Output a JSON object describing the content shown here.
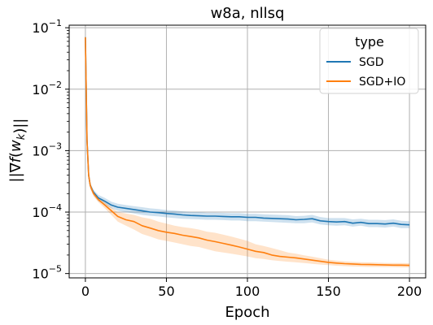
{
  "chart_data": {
    "type": "line",
    "title": "w8a, nllsq",
    "xlabel": "Epoch",
    "ylabel": "||∇f(w_k)||",
    "xlim": [
      -10,
      210
    ],
    "ylim": [
      8.5e-06,
      0.11
    ],
    "yscale": "log",
    "grid": true,
    "xticks": [
      0,
      50,
      100,
      150,
      200
    ],
    "xtick_labels": [
      "0",
      "50",
      "100",
      "150",
      "200"
    ],
    "yticks": [
      1e-05,
      0.0001,
      0.001,
      0.01,
      0.1
    ],
    "ytick_labels": [
      {
        "base": "10",
        "exp": "−5"
      },
      {
        "base": "10",
        "exp": "−4"
      },
      {
        "base": "10",
        "exp": "−3"
      },
      {
        "base": "10",
        "exp": "−2"
      },
      {
        "base": "10",
        "exp": "−1"
      }
    ],
    "legend": {
      "title": "type",
      "position": "top-right"
    },
    "series": [
      {
        "name": "SGD",
        "color": "#1f77b4",
        "x": [
          0,
          1,
          2,
          3,
          5,
          8,
          12,
          16,
          20,
          25,
          30,
          35,
          40,
          45,
          50,
          55,
          60,
          65,
          70,
          75,
          80,
          85,
          90,
          95,
          100,
          105,
          110,
          115,
          120,
          125,
          130,
          135,
          140,
          145,
          150,
          155,
          160,
          165,
          170,
          175,
          180,
          185,
          190,
          195,
          200
        ],
        "values": [
          0.07,
          0.0015,
          0.0004,
          0.00027,
          0.00021,
          0.00017,
          0.00015,
          0.00013,
          0.00012,
          0.000115,
          0.00011,
          0.000105,
          0.0001,
          9.8e-05,
          9.5e-05,
          9.3e-05,
          9e-05,
          8.8e-05,
          8.7e-05,
          8.6e-05,
          8.6e-05,
          8.5e-05,
          8.4e-05,
          8.4e-05,
          8.2e-05,
          8.2e-05,
          8e-05,
          7.9e-05,
          7.8e-05,
          7.7e-05,
          7.5e-05,
          7.6e-05,
          7.8e-05,
          7.2e-05,
          7e-05,
          6.9e-05,
          7e-05,
          6.6e-05,
          6.8e-05,
          6.5e-05,
          6.5e-05,
          6.4e-05,
          6.6e-05,
          6.3e-05,
          6.2e-05
        ],
        "lower": [
          0.065,
          0.0013,
          0.00035,
          0.00024,
          0.00019,
          0.00015,
          0.00013,
          0.000115,
          0.000105,
          0.0001,
          9.5e-05,
          9e-05,
          8.7e-05,
          8.5e-05,
          8.2e-05,
          8e-05,
          7.8e-05,
          7.7e-05,
          7.6e-05,
          7.5e-05,
          7.5e-05,
          7.4e-05,
          7.3e-05,
          7.3e-05,
          7.1e-05,
          7.1e-05,
          7e-05,
          6.9e-05,
          6.8e-05,
          6.7e-05,
          6.6e-05,
          6.6e-05,
          6.8e-05,
          6.3e-05,
          6.1e-05,
          6e-05,
          6.1e-05,
          5.8e-05,
          6e-05,
          5.7e-05,
          5.7e-05,
          5.6e-05,
          5.8e-05,
          5.5e-05,
          5.5e-05
        ],
        "upper": [
          0.075,
          0.0017,
          0.00045,
          0.0003,
          0.00023,
          0.00019,
          0.00017,
          0.000148,
          0.000137,
          0.00013,
          0.000125,
          0.00012,
          0.000115,
          0.000112,
          0.000108,
          0.000106,
          0.000103,
          0.0001,
          0.0001,
          9.8e-05,
          9.8e-05,
          9.7e-05,
          9.6e-05,
          9.6e-05,
          9.4e-05,
          9.4e-05,
          9.2e-05,
          9.1e-05,
          9e-05,
          8.9e-05,
          8.6e-05,
          8.7e-05,
          9e-05,
          8.3e-05,
          8e-05,
          8e-05,
          8e-05,
          7.6e-05,
          7.8e-05,
          7.5e-05,
          7.5e-05,
          7.4e-05,
          7.6e-05,
          7.2e-05,
          7.1e-05
        ]
      },
      {
        "name": "SGD+IO",
        "color": "#ff7f0e",
        "x": [
          0,
          1,
          2,
          3,
          5,
          8,
          12,
          16,
          20,
          25,
          30,
          35,
          40,
          45,
          50,
          55,
          60,
          65,
          70,
          75,
          80,
          85,
          90,
          95,
          100,
          105,
          110,
          115,
          120,
          125,
          130,
          135,
          140,
          145,
          150,
          155,
          160,
          165,
          170,
          175,
          180,
          185,
          190,
          195,
          200
        ],
        "values": [
          0.07,
          0.0015,
          0.0004,
          0.00027,
          0.0002,
          0.00016,
          0.00013,
          0.000105,
          8.5e-05,
          7.5e-05,
          7e-05,
          6e-05,
          5.5e-05,
          5e-05,
          4.7e-05,
          4.5e-05,
          4.2e-05,
          4e-05,
          3.8e-05,
          3.5e-05,
          3.3e-05,
          3.1e-05,
          2.9e-05,
          2.7e-05,
          2.5e-05,
          2.3e-05,
          2.2e-05,
          2e-05,
          1.9e-05,
          1.85e-05,
          1.8e-05,
          1.72e-05,
          1.65e-05,
          1.58e-05,
          1.52e-05,
          1.48e-05,
          1.45e-05,
          1.43e-05,
          1.41e-05,
          1.4e-05,
          1.39e-05,
          1.38e-05,
          1.37e-05,
          1.37e-05,
          1.36e-05
        ],
        "lower": [
          0.065,
          0.0013,
          0.00035,
          0.00024,
          0.00018,
          0.000145,
          0.000115,
          9e-05,
          7e-05,
          6e-05,
          5.2e-05,
          4.4e-05,
          4e-05,
          3.6e-05,
          3.4e-05,
          3.2e-05,
          3e-05,
          2.8e-05,
          2.7e-05,
          2.5e-05,
          2.3e-05,
          2.2e-05,
          2.1e-05,
          2e-05,
          1.9e-05,
          1.78e-05,
          1.72e-05,
          1.65e-05,
          1.6e-05,
          1.56e-05,
          1.52e-05,
          1.48e-05,
          1.44e-05,
          1.4e-05,
          1.37e-05,
          1.34e-05,
          1.32e-05,
          1.3e-05,
          1.29e-05,
          1.28e-05,
          1.28e-05,
          1.27e-05,
          1.27e-05,
          1.26e-05,
          1.26e-05
        ],
        "upper": [
          0.075,
          0.0017,
          0.00045,
          0.0003,
          0.00022,
          0.000175,
          0.000145,
          0.00012,
          0.0001,
          9.5e-05,
          9e-05,
          8.2e-05,
          7.8e-05,
          7e-05,
          6.5e-05,
          6e-05,
          5.7e-05,
          5.5e-05,
          5.2e-05,
          4.8e-05,
          4.6e-05,
          4.3e-05,
          4e-05,
          3.7e-05,
          3.4e-05,
          3e-05,
          2.8e-05,
          2.6e-05,
          2.4e-05,
          2.2e-05,
          2.1e-05,
          1.98e-05,
          1.88e-05,
          1.78e-05,
          1.68e-05,
          1.62e-05,
          1.58e-05,
          1.55e-05,
          1.53e-05,
          1.52e-05,
          1.5e-05,
          1.49e-05,
          1.48e-05,
          1.48e-05,
          1.47e-05
        ]
      }
    ]
  }
}
